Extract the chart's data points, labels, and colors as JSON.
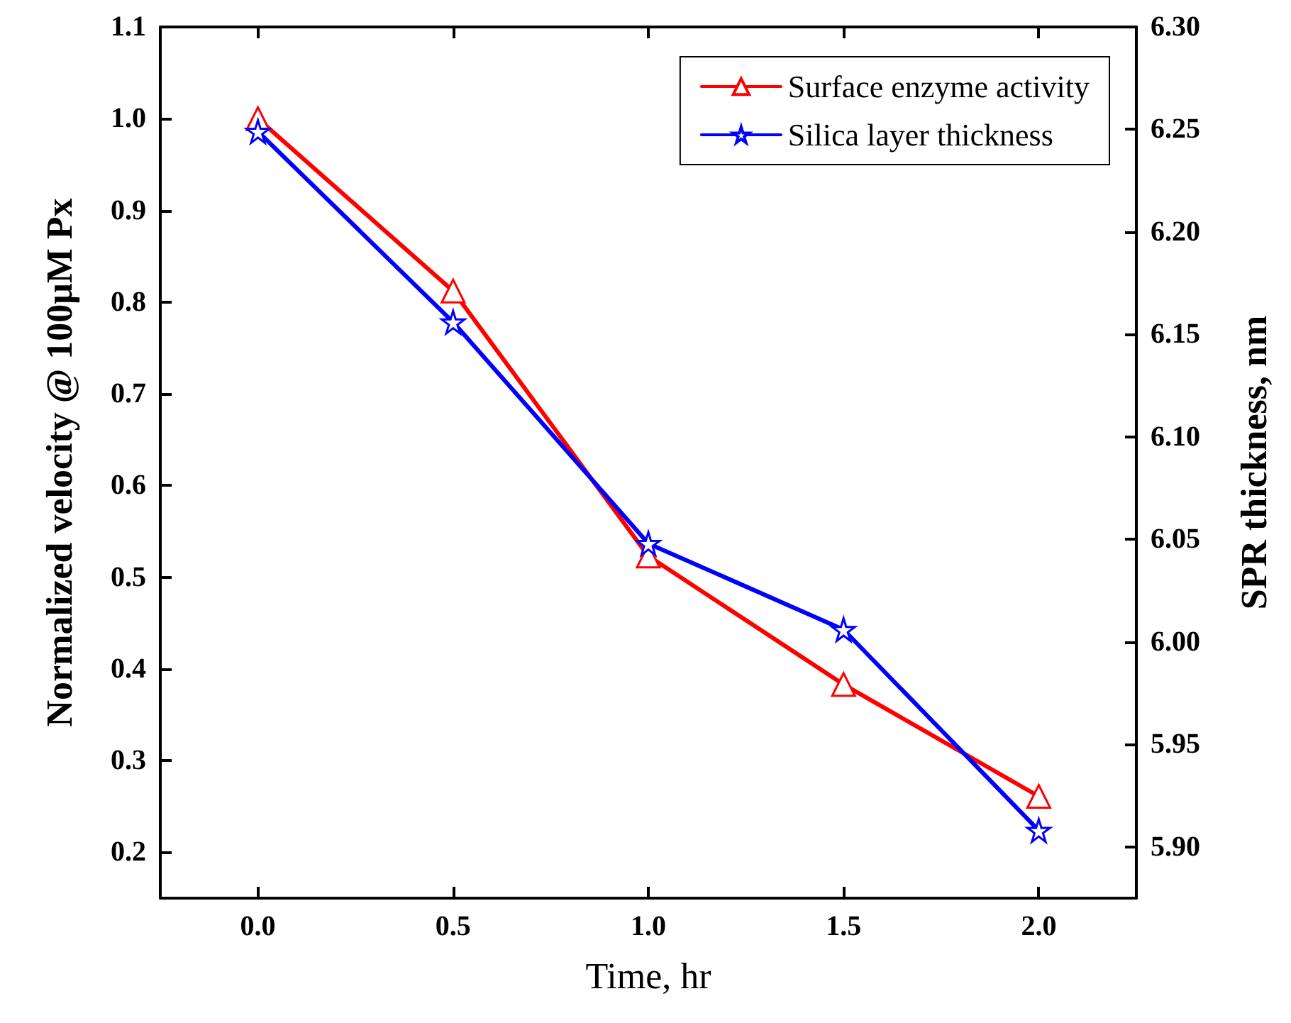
{
  "chart_data": {
    "type": "line",
    "xlabel": "Time, hr",
    "ylabel": "Normalized velocity @ 100μM Px",
    "y2label": "SPR thickness, nm",
    "x": [
      0,
      0.5,
      1.0,
      1.5,
      2.0
    ],
    "series": [
      {
        "name": "Surface enzyme activity",
        "color": "#ff0000",
        "marker": "triangle",
        "values": [
          1.0,
          0.812,
          0.523,
          0.383,
          0.261
        ]
      },
      {
        "name": "Silica layer thickness",
        "color": "#0000ff",
        "marker": "star",
        "axis": "y2",
        "values": [
          6.249,
          6.156,
          6.048,
          6.006,
          5.908
        ]
      }
    ],
    "xlim": [
      -0.25,
      2.25
    ],
    "xticks": [
      {
        "value": 0,
        "label": "0.0"
      },
      0.5,
      {
        "value": 1,
        "label": "1.0"
      },
      1.5,
      {
        "value": 2,
        "label": "2.0"
      }
    ],
    "ylim": [
      0.15,
      1.1
    ],
    "yticks": [
      0.2,
      0.3,
      0.4,
      0.5,
      0.6,
      0.7,
      0.8,
      0.9,
      {
        "value": 1,
        "label": "1.0"
      },
      1.1
    ],
    "y2lim": [
      5.875,
      6.3
    ],
    "y2ticks": [
      {
        "value": 5.9,
        "label": "5.90"
      },
      5.95,
      {
        "value": 6,
        "label": "6.00"
      },
      6.05,
      {
        "value": 6.1,
        "label": "6.10"
      },
      6.15,
      {
        "value": 6.2,
        "label": "6.20"
      },
      6.25,
      {
        "value": 6.3,
        "label": "6.30"
      }
    ],
    "grid": false,
    "legend": "top right",
    "line_style": "solid"
  }
}
